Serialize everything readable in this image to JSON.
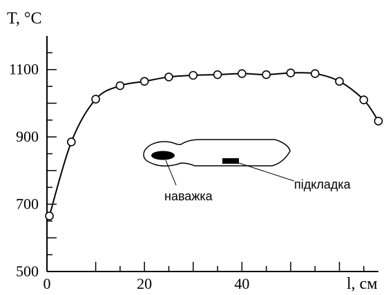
{
  "chart_data": {
    "type": "line",
    "title": "",
    "xlabel": "l, см",
    "ylabel": "T, °C",
    "xlim": [
      0,
      68
    ],
    "ylim": [
      500,
      1200
    ],
    "x_ticks": [
      0,
      20,
      40
    ],
    "y_ticks": [
      500,
      700,
      900,
      1100
    ],
    "grid": false,
    "series": [
      {
        "markers": "open-circle",
        "x": [
          0.5,
          5,
          10,
          15,
          20,
          25,
          30,
          35,
          40,
          45,
          50,
          55,
          60,
          65,
          68
        ],
        "y": [
          665,
          885,
          1012,
          1052,
          1065,
          1078,
          1083,
          1085,
          1088,
          1085,
          1090,
          1088,
          1065,
          1010,
          947
        ]
      }
    ],
    "inset": {
      "labels": {
        "sample": "наважка",
        "substrate": "підкладка"
      }
    }
  }
}
